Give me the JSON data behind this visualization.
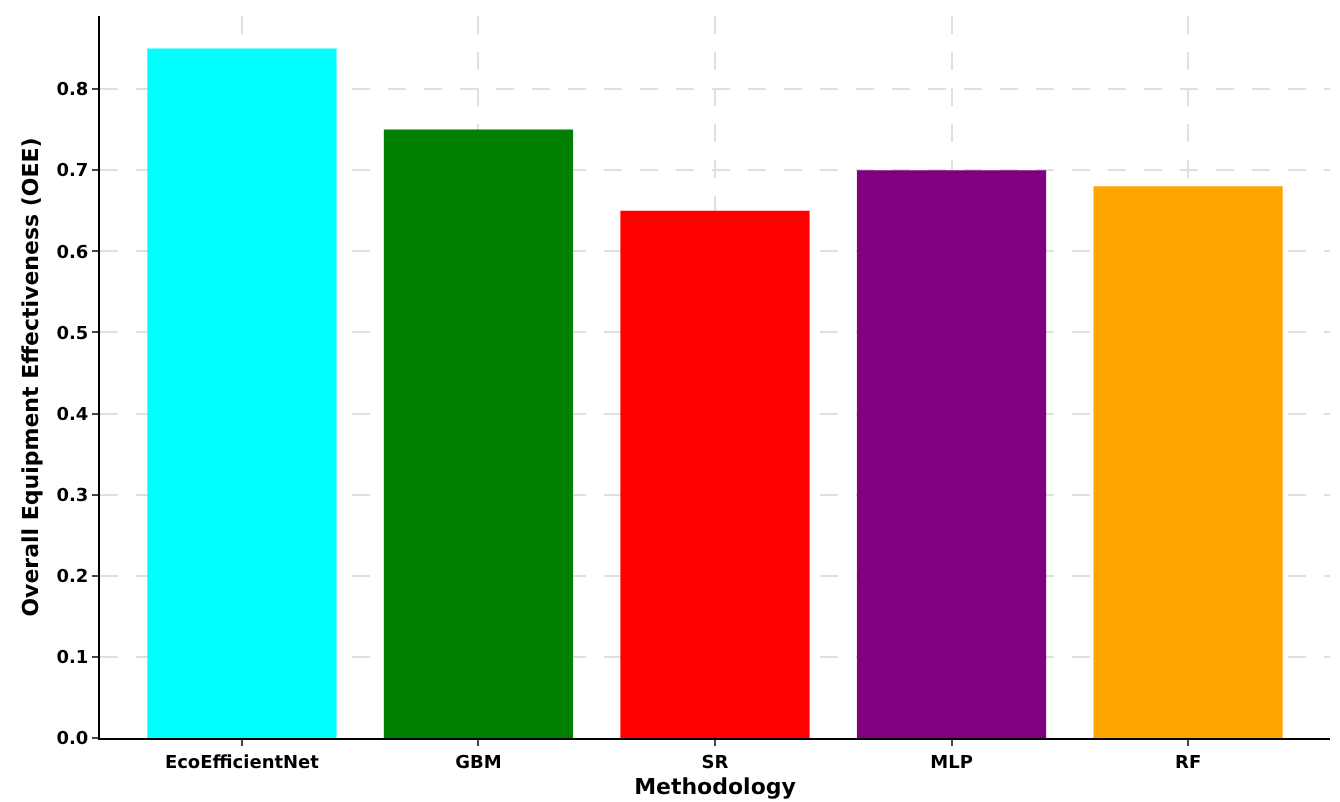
{
  "chart_data": {
    "type": "bar",
    "xlabel": "Methodology",
    "ylabel": "Overall Equipment Effectiveness (OEE)",
    "categories": [
      "EcoEfficientNet",
      "GBM",
      "SR",
      "MLP",
      "RF"
    ],
    "values": [
      0.85,
      0.75,
      0.65,
      0.7,
      0.68
    ],
    "colors": [
      "#00ffff",
      "#008000",
      "#ff0000",
      "#800080",
      "#ffa500"
    ],
    "ylim": [
      0,
      0.89
    ],
    "yticks": [
      {
        "value": 0,
        "label": "0.0"
      },
      0.1,
      0.2,
      0.3,
      0.4,
      0.5,
      0.6,
      0.7,
      0.8
    ],
    "grid": true
  }
}
